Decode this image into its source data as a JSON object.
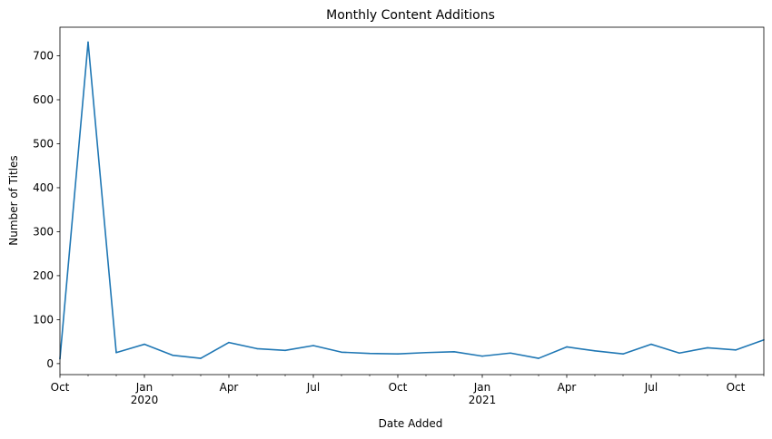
{
  "chart_data": {
    "type": "line",
    "title": "Monthly Content Additions",
    "xlabel": "Date Added",
    "ylabel": "Number of Titles",
    "ylim": [
      -25,
      765
    ],
    "xlim": [
      "2019-10",
      "2021-11"
    ],
    "grid": false,
    "color": "#1f77b4",
    "x_ticks": [
      {
        "month": "2019-10",
        "label": "Oct",
        "sublabel": ""
      },
      {
        "month": "2020-01",
        "label": "Jan",
        "sublabel": "2020"
      },
      {
        "month": "2020-04",
        "label": "Apr",
        "sublabel": ""
      },
      {
        "month": "2020-07",
        "label": "Jul",
        "sublabel": ""
      },
      {
        "month": "2020-10",
        "label": "Oct",
        "sublabel": ""
      },
      {
        "month": "2021-01",
        "label": "Jan",
        "sublabel": "2021"
      },
      {
        "month": "2021-04",
        "label": "Apr",
        "sublabel": ""
      },
      {
        "month": "2021-07",
        "label": "Jul",
        "sublabel": ""
      },
      {
        "month": "2021-10",
        "label": "Oct",
        "sublabel": ""
      }
    ],
    "y_ticks": [
      0,
      100,
      200,
      300,
      400,
      500,
      600,
      700
    ],
    "x": [
      "2019-10",
      "2019-11",
      "2019-12",
      "2020-01",
      "2020-02",
      "2020-03",
      "2020-04",
      "2020-05",
      "2020-06",
      "2020-07",
      "2020-08",
      "2020-09",
      "2020-10",
      "2020-11",
      "2020-12",
      "2021-01",
      "2021-02",
      "2021-03",
      "2021-04",
      "2021-05",
      "2021-06",
      "2021-07",
      "2021-08",
      "2021-09",
      "2021-10",
      "2021-11"
    ],
    "series": [
      {
        "values": [
          11,
          731,
          25,
          44,
          19,
          12,
          48,
          34,
          30,
          41,
          26,
          23,
          22,
          25,
          27,
          17,
          24,
          12,
          38,
          29,
          22,
          44,
          24,
          36,
          31,
          54
        ]
      }
    ]
  }
}
